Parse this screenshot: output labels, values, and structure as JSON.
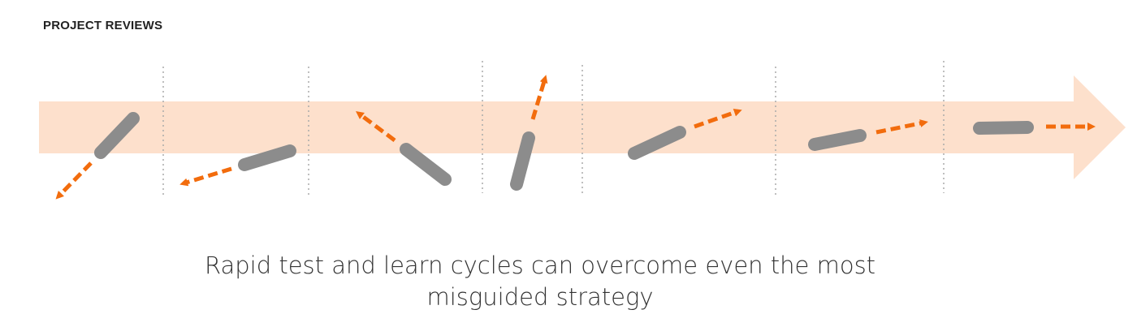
{
  "header": {
    "label": "PROJECT REVIEWS"
  },
  "caption": {
    "line1": "Rapid test and learn cycles can overcome even the most",
    "line2": "misguided strategy"
  },
  "colors": {
    "band": "#fde0cc",
    "segment": "#8c8c8c",
    "arrow": "#f26c0d",
    "divider": "#aaaaaa"
  },
  "diagram": {
    "stage_count": 7,
    "divider_count": 6
  }
}
